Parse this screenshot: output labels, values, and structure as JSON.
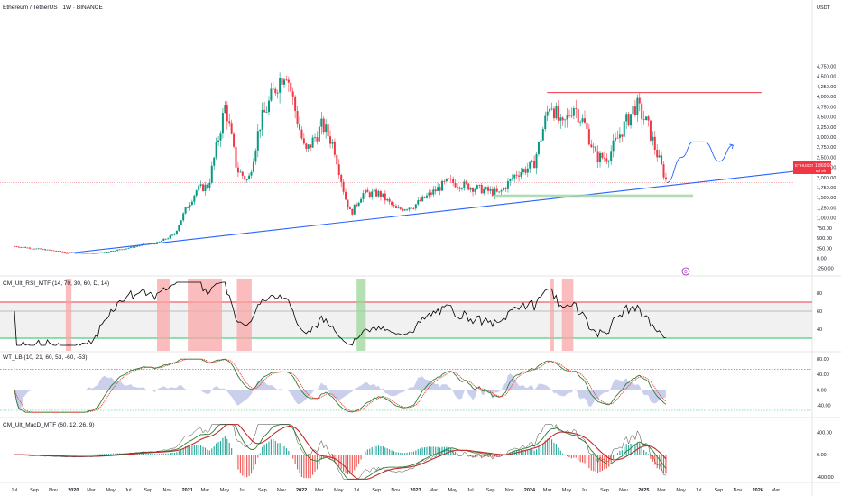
{
  "header": {
    "title": "Ethereum / TetherUS · 1W · BINANCE",
    "currency": "USDT"
  },
  "price_tag": {
    "symbol": "ETHUSDT",
    "value": "1,869.92",
    "countdown": "6d 9h"
  },
  "marker": {
    "text": "B"
  },
  "colors": {
    "up": "#089981",
    "down": "#f23645",
    "trendline": "#2962ff",
    "resistance": "#f23645",
    "support_zone": "#a5d6a7",
    "projection": "#2962ff",
    "rsi_line": "#000000",
    "rsi_band": "#e0e0e0",
    "rsi_upper": "#f23645",
    "rsi_lower": "#22c55e",
    "wt_fast": "#2e7d32",
    "wt_slow": "#e53935",
    "wt_area": "#9fa8da",
    "macd_line": "#2e7d32",
    "macd_signal": "#c62828",
    "macd_thin": "#424242"
  },
  "panes": {
    "rsi": {
      "title": "CM_Ult_RSI_MTF (14, 70, 30, 60, D, 14)",
      "ticks": [
        "80",
        "60",
        "40"
      ]
    },
    "wt": {
      "title": "WT_LB (10, 21, 60, 53, -60, -53)",
      "ticks": [
        "80.00",
        "40.00",
        "0.00",
        "-40.00"
      ]
    },
    "macd": {
      "title": "CM_Ult_MacD_MTF (60, 12, 26, 9)",
      "ticks": [
        "400.00",
        "0.00",
        "-400.00"
      ]
    }
  },
  "chart_data": {
    "type": "candlestick",
    "title": "Ethereum / TetherUS · 1W · BINANCE",
    "y_unit": "USDT",
    "y_ticks": [
      "4,750.00",
      "4,500.00",
      "4,250.00",
      "4,000.00",
      "3,750.00",
      "3,500.00",
      "3,250.00",
      "3,000.00",
      "2,750.00",
      "2,500.00",
      "2,250.00",
      "2,000.00",
      "1,750.00",
      "1,500.00",
      "1,250.00",
      "1,000.00",
      "750.00",
      "500.00",
      "250.00",
      "0.00",
      "-250.00"
    ],
    "x_ticks": [
      "Jul",
      "Sep",
      "Nov",
      "2020",
      "Mar",
      "May",
      "Jul",
      "Sep",
      "Nov",
      "2021",
      "Mar",
      "May",
      "Jul",
      "Sep",
      "Nov",
      "2022",
      "Mar",
      "May",
      "Jul",
      "Sep",
      "Nov",
      "2023",
      "Mar",
      "May",
      "Jul",
      "Sep",
      "Nov",
      "2024",
      "Mar",
      "May",
      "Jul",
      "Sep",
      "Nov",
      "2025",
      "Mar",
      "May",
      "Jul",
      "Sep",
      "Nov",
      "2026",
      "Mar"
    ],
    "price_path": [
      [
        2019.5,
        300
      ],
      [
        2019.75,
        220
      ],
      [
        2020.0,
        140
      ],
      [
        2020.2,
        120
      ],
      [
        2020.45,
        230
      ],
      [
        2020.6,
        320
      ],
      [
        2020.75,
        380
      ],
      [
        2020.9,
        580
      ],
      [
        2021.0,
        1200
      ],
      [
        2021.1,
        1700
      ],
      [
        2021.2,
        1800
      ],
      [
        2021.35,
        3800
      ],
      [
        2021.45,
        2200
      ],
      [
        2021.55,
        1900
      ],
      [
        2021.65,
        3300
      ],
      [
        2021.8,
        4300
      ],
      [
        2021.88,
        4700
      ],
      [
        2021.95,
        3800
      ],
      [
        2022.05,
        2600
      ],
      [
        2022.2,
        3300
      ],
      [
        2022.3,
        2800
      ],
      [
        2022.4,
        1500
      ],
      [
        2022.45,
        1100
      ],
      [
        2022.55,
        1600
      ],
      [
        2022.7,
        1600
      ],
      [
        2022.85,
        1200
      ],
      [
        2023.0,
        1300
      ],
      [
        2023.15,
        1600
      ],
      [
        2023.3,
        1900
      ],
      [
        2023.45,
        1800
      ],
      [
        2023.6,
        1700
      ],
      [
        2023.75,
        1600
      ],
      [
        2023.9,
        2100
      ],
      [
        2024.05,
        2300
      ],
      [
        2024.2,
        3900
      ],
      [
        2024.3,
        3200
      ],
      [
        2024.4,
        3800
      ],
      [
        2024.5,
        3300
      ],
      [
        2024.6,
        2500
      ],
      [
        2024.7,
        2500
      ],
      [
        2024.85,
        3300
      ],
      [
        2024.95,
        3800
      ],
      [
        2025.05,
        3300
      ],
      [
        2025.12,
        2700
      ],
      [
        2025.18,
        2200
      ],
      [
        2025.22,
        1870
      ]
    ],
    "last_price": 1869.92,
    "trendline": {
      "from": [
        2019.95,
        120
      ],
      "to": [
        2026.65,
        2250
      ]
    },
    "resistance": {
      "price": 4100,
      "from": 2024.17,
      "to": 2026.05
    },
    "support_zone": {
      "low": 1500,
      "high": 1580,
      "from": 2023.7,
      "to": 2025.45
    },
    "projection": [
      [
        2025.22,
        1870
      ],
      [
        2025.35,
        2500
      ],
      [
        2025.45,
        2880
      ],
      [
        2025.55,
        2880
      ],
      [
        2025.68,
        2400
      ],
      [
        2025.8,
        2800
      ]
    ],
    "rsi": {
      "levels": [
        70,
        30,
        60
      ],
      "band": [
        30,
        70
      ],
      "y_range": [
        20,
        95
      ]
    },
    "wt_lb": {
      "levels": [
        53,
        -53
      ],
      "y_range": [
        -60,
        85
      ]
    },
    "macd": {
      "params": [
        60,
        12,
        26,
        9
      ],
      "y_range": [
        -450,
        550
      ]
    }
  }
}
